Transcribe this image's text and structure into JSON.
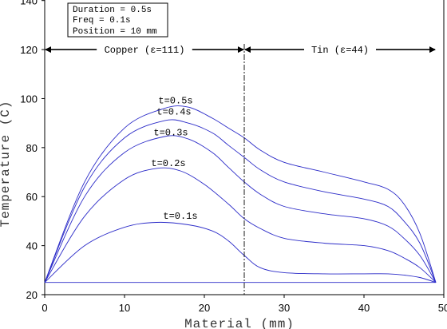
{
  "chart_data": {
    "type": "line",
    "xlabel": "Material (mm)",
    "ylabel": "Temperature (C)",
    "xlim": [
      0,
      50
    ],
    "ylim": [
      20,
      150
    ],
    "xticks": [
      0,
      10,
      20,
      30,
      40,
      50
    ],
    "yticks": [
      20,
      40,
      60,
      80,
      100,
      120,
      140
    ],
    "grid": false,
    "info_box": [
      "Duration = 0.5s",
      "Freq = 0.1s",
      "Position = 10 mm"
    ],
    "boundary_x": 25,
    "regions": [
      {
        "label": "Copper (ε=111)",
        "x_start": 0,
        "x_end": 25,
        "y": 120
      },
      {
        "label": "Tin (ε=44)",
        "x_start": 25,
        "x_end": 49,
        "y": 120
      }
    ],
    "baseline": {
      "x": [
        0,
        49
      ],
      "y": [
        25,
        25
      ]
    },
    "series": [
      {
        "name": "t=0.1s",
        "label_pos": [
          17,
          51
        ],
        "x": [
          0,
          5,
          10,
          14,
          18,
          21,
          23,
          25,
          27,
          30,
          35,
          40,
          43,
          45,
          47,
          49
        ],
        "y": [
          25,
          40,
          47.5,
          49.5,
          48.5,
          46,
          42,
          36,
          31,
          29,
          28.5,
          28.5,
          28.5,
          28,
          27,
          25
        ]
      },
      {
        "name": "t=0.2s",
        "label_pos": [
          15.5,
          72.5
        ],
        "x": [
          0,
          5,
          10,
          14,
          17,
          20,
          23,
          25,
          27,
          30,
          35,
          40,
          43,
          45,
          47,
          49
        ],
        "y": [
          25,
          52,
          67,
          71.5,
          70.5,
          65,
          57,
          51,
          47,
          43,
          41,
          40,
          38,
          35,
          31,
          25
        ]
      },
      {
        "name": "t=0.3s",
        "label_pos": [
          15.8,
          85
        ],
        "x": [
          0,
          5,
          10,
          15,
          18,
          21,
          23,
          25,
          27,
          30,
          35,
          40,
          43,
          45,
          47,
          49
        ],
        "y": [
          25,
          60,
          78,
          84.5,
          83.5,
          78,
          72,
          66,
          61,
          56,
          53,
          51,
          48,
          43,
          36,
          25
        ]
      },
      {
        "name": "t=0.4s",
        "label_pos": [
          16.2,
          93.5
        ],
        "x": [
          0,
          5,
          10,
          15,
          18,
          21,
          23,
          25,
          27,
          30,
          35,
          40,
          43,
          45,
          47,
          49
        ],
        "y": [
          25,
          64,
          84,
          91,
          90,
          86,
          81,
          76,
          71,
          66,
          62,
          59,
          56,
          50,
          41,
          25
        ]
      },
      {
        "name": "t=0.5s",
        "label_pos": [
          16.4,
          98
        ],
        "x": [
          0,
          5,
          10,
          15,
          18,
          21,
          23,
          25,
          27,
          30,
          35,
          40,
          43,
          45,
          47,
          49
        ],
        "y": [
          25,
          66,
          88,
          96,
          96.5,
          92,
          88,
          84,
          79,
          74,
          70,
          66,
          63,
          57,
          45,
          25
        ]
      }
    ]
  }
}
